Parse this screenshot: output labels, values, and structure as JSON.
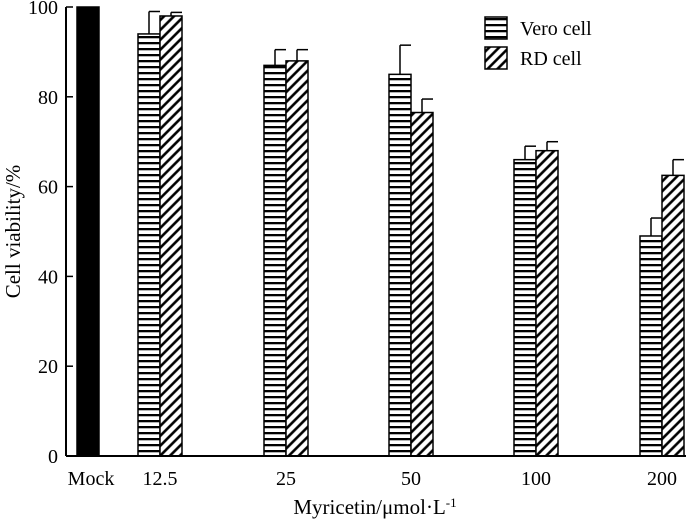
{
  "chart_data": {
    "type": "bar",
    "title": "",
    "xlabel": "Myricetin/μmol·L",
    "xlabel_sup": "-1",
    "ylabel": "Cell viability/%",
    "ylim": [
      0,
      100
    ],
    "yticks": [
      0,
      20,
      40,
      60,
      80,
      100
    ],
    "grid": false,
    "legend_position": "top-right",
    "control": {
      "label": "Mock",
      "value": 100,
      "color": "#000000"
    },
    "categories": [
      "12.5",
      "25",
      "50",
      "100",
      "200"
    ],
    "series": [
      {
        "name": "Vero cell",
        "pattern": "horizontal-lines",
        "values": [
          94,
          87,
          85,
          66,
          49
        ],
        "errors": [
          5,
          3.5,
          6.5,
          3,
          4
        ]
      },
      {
        "name": "RD cell",
        "pattern": "diagonal-lines",
        "values": [
          98,
          88,
          76.5,
          68,
          62.5
        ],
        "errors": [
          0.8,
          2.5,
          3,
          2,
          3.5
        ]
      }
    ]
  }
}
